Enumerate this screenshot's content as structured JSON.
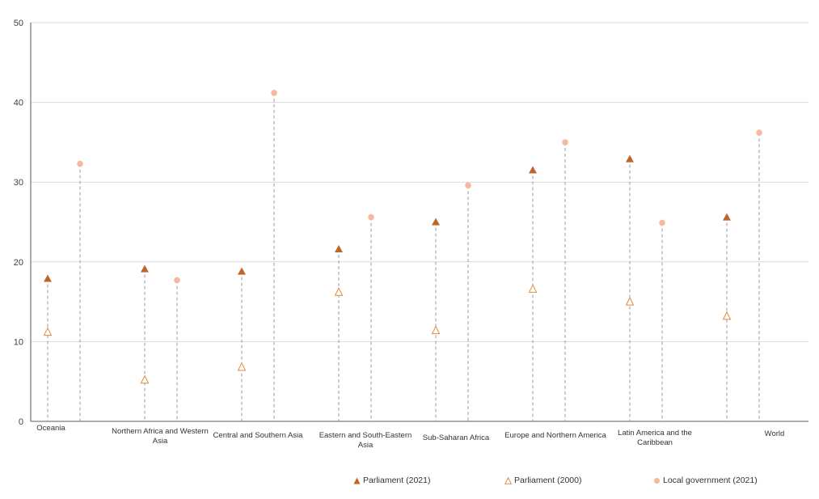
{
  "chart_data": {
    "type": "scatter",
    "title": "",
    "xlabel": "",
    "ylabel": "",
    "ylim": [
      0,
      50
    ],
    "yticks": [
      0,
      10,
      20,
      30,
      40,
      50
    ],
    "grid": true,
    "legend_position": "bottom",
    "categories": [
      "Oceania",
      "Northern Africa and Western Asia",
      "Central and Southern Asia",
      "Eastern and South-Eastern Asia",
      "Sub-Saharan Africa",
      "Europe and Northern America",
      "Latin America and the Caribbean",
      "World"
    ],
    "series": [
      {
        "name": "Parliament (2021)",
        "marker": "filled-triangle",
        "color": "#c0652a",
        "values": [
          17.9,
          19.1,
          18.8,
          21.6,
          25.0,
          31.5,
          32.9,
          25.6
        ]
      },
      {
        "name": "Parliament (2000)",
        "marker": "hollow-triangle",
        "color": "#e08a3c",
        "values": [
          11.2,
          5.2,
          6.8,
          16.2,
          11.4,
          16.6,
          15.0,
          13.2
        ]
      },
      {
        "name": "Local government (2021)",
        "marker": "circle",
        "color": "#f4b9a0",
        "values": [
          32.3,
          17.7,
          41.2,
          25.6,
          29.6,
          35.0,
          24.9,
          36.2
        ]
      }
    ],
    "dropline_color": "#9a9aa6"
  }
}
